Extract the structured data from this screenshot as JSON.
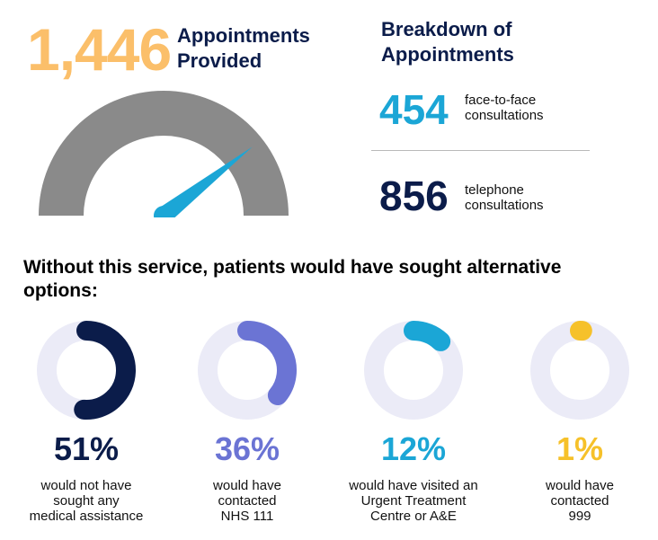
{
  "header": {
    "total_value": "1,446",
    "total_label_line1": "Appointments",
    "total_label_line2": "Provided"
  },
  "breakdown": {
    "title_line1": "Breakdown of",
    "title_line2": "Appointments",
    "items": [
      {
        "value": "454",
        "label_line1": "face-to-face",
        "label_line2": "consultations",
        "color": "#1ba6d6"
      },
      {
        "value": "856",
        "label_line1": "telephone",
        "label_line2": "consultations",
        "color": "#0b1c4a"
      }
    ]
  },
  "gauge": {
    "track_color": "#8a8a8a",
    "needle_color": "#1ba6d6",
    "needle_value_fraction": 0.79
  },
  "alternatives": {
    "title_line1": "Without this service, patients would have sought alternative",
    "title_line2": "options:",
    "ring_track_color": "#ebebf7",
    "items": [
      {
        "percent": "51%",
        "value": 51,
        "color": "#0b1c4a",
        "lines": [
          "would not have",
          "sought any",
          "medical assistance"
        ]
      },
      {
        "percent": "36%",
        "value": 36,
        "color": "#6b74d4",
        "lines": [
          "would have",
          "contacted",
          "NHS 111"
        ]
      },
      {
        "percent": "12%",
        "value": 12,
        "color": "#1ba6d6",
        "lines": [
          "would have visited an",
          "Urgent Treatment",
          "Centre or A&E"
        ]
      },
      {
        "percent": "1%",
        "value": 1,
        "color": "#f6c12a",
        "lines": [
          "would have",
          "contacted",
          "999"
        ]
      }
    ]
  }
}
